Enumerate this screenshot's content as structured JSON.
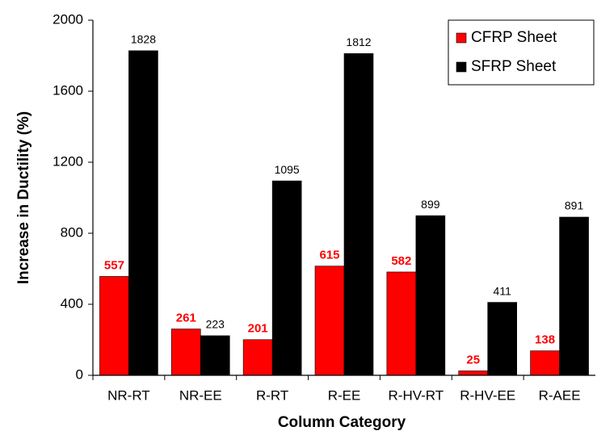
{
  "chart_data": {
    "type": "bar",
    "categories": [
      "NR-RT",
      "NR-EE",
      "R-RT",
      "R-EE",
      "R-HV-RT",
      "R-HV-EE",
      "R-AEE"
    ],
    "series": [
      {
        "name": "CFRP Sheet",
        "color": "#ff0000",
        "values": [
          557,
          261,
          201,
          615,
          582,
          25,
          138
        ]
      },
      {
        "name": "SFRP Sheet",
        "color": "#000000",
        "values": [
          1828,
          223,
          1095,
          1812,
          899,
          411,
          891
        ]
      }
    ],
    "x_label": "Column Category",
    "y_label": "Increase in Ductility (%)",
    "ylim": [
      0,
      2000
    ],
    "yticks": [
      0,
      400,
      800,
      1200,
      1600,
      2000
    ],
    "legend": "upper right",
    "grid": false
  }
}
